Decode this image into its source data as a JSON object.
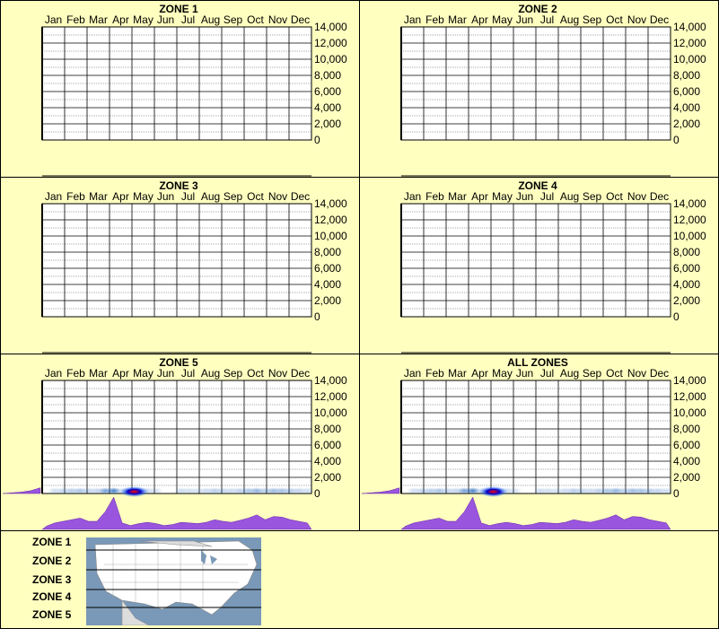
{
  "months": [
    "Jan",
    "Feb",
    "Mar",
    "Apr",
    "May",
    "Jun",
    "Jul",
    "Aug",
    "Sep",
    "Oct",
    "Nov",
    "Dec"
  ],
  "y_ticks": [
    "14,000",
    "12,000",
    "10,000",
    "8,000",
    "6,000",
    "4,000",
    "2,000",
    "0"
  ],
  "colors": {
    "background": "#FFFFC0",
    "plot_bg": "#FFFFFF",
    "hist_fill": "#9955DD",
    "hot": "#FF0000",
    "density": "#2266BB"
  },
  "legend": {
    "zones": [
      "ZONE 1",
      "ZONE 2",
      "ZONE 3",
      "ZONE 4",
      "ZONE 5"
    ]
  },
  "chart_data": [
    {
      "type": "heatmap",
      "title": "ZONE 1",
      "x": [
        "Jan",
        "Feb",
        "Mar",
        "Apr",
        "May",
        "Jun",
        "Jul",
        "Aug",
        "Sep",
        "Oct",
        "Nov",
        "Dec"
      ],
      "ylim": [
        0,
        14000
      ],
      "grid": true,
      "has_data": false,
      "profile": []
    },
    {
      "type": "heatmap",
      "title": "ZONE 2",
      "x": [
        "Jan",
        "Feb",
        "Mar",
        "Apr",
        "May",
        "Jun",
        "Jul",
        "Aug",
        "Sep",
        "Oct",
        "Nov",
        "Dec"
      ],
      "ylim": [
        0,
        14000
      ],
      "grid": true,
      "has_data": false,
      "profile": []
    },
    {
      "type": "heatmap",
      "title": "ZONE 3",
      "x": [
        "Jan",
        "Feb",
        "Mar",
        "Apr",
        "May",
        "Jun",
        "Jul",
        "Aug",
        "Sep",
        "Oct",
        "Nov",
        "Dec"
      ],
      "ylim": [
        0,
        14000
      ],
      "grid": true,
      "has_data": false,
      "profile": []
    },
    {
      "type": "heatmap",
      "title": "ZONE 4",
      "x": [
        "Jan",
        "Feb",
        "Mar",
        "Apr",
        "May",
        "Jun",
        "Jul",
        "Aug",
        "Sep",
        "Oct",
        "Nov",
        "Dec"
      ],
      "ylim": [
        0,
        14000
      ],
      "grid": true,
      "has_data": false,
      "profile": []
    },
    {
      "type": "heatmap",
      "title": "ZONE 5",
      "x": [
        "Jan",
        "Feb",
        "Mar",
        "Apr",
        "May",
        "Jun",
        "Jul",
        "Aug",
        "Sep",
        "Oct",
        "Nov",
        "Dec"
      ],
      "ylim": [
        0,
        14000
      ],
      "grid": true,
      "has_data": true,
      "profile": [
        0.1,
        0.2,
        0.25,
        0.3,
        0.35,
        0.25,
        0.25,
        0.55,
        1.0,
        0.2,
        0.12,
        0.18,
        0.22,
        0.18,
        0.12,
        0.15,
        0.22,
        0.2,
        0.18,
        0.22,
        0.3,
        0.25,
        0.22,
        0.28,
        0.35,
        0.45,
        0.3,
        0.4,
        0.38,
        0.3,
        0.25,
        0.2
      ],
      "hotspot_month": "May",
      "side_hist": [
        0.1,
        0.2,
        0.4,
        0.8
      ]
    },
    {
      "type": "heatmap",
      "title": "ALL ZONES",
      "x": [
        "Jan",
        "Feb",
        "Mar",
        "Apr",
        "May",
        "Jun",
        "Jul",
        "Aug",
        "Sep",
        "Oct",
        "Nov",
        "Dec"
      ],
      "ylim": [
        0,
        14000
      ],
      "grid": true,
      "has_data": true,
      "profile": [
        0.1,
        0.2,
        0.25,
        0.3,
        0.35,
        0.25,
        0.25,
        0.55,
        1.0,
        0.2,
        0.12,
        0.18,
        0.22,
        0.18,
        0.12,
        0.15,
        0.22,
        0.2,
        0.18,
        0.22,
        0.3,
        0.25,
        0.22,
        0.28,
        0.35,
        0.45,
        0.3,
        0.4,
        0.38,
        0.3,
        0.25,
        0.2
      ],
      "hotspot_month": "May",
      "side_hist": [
        0.1,
        0.2,
        0.4,
        0.8
      ]
    }
  ]
}
